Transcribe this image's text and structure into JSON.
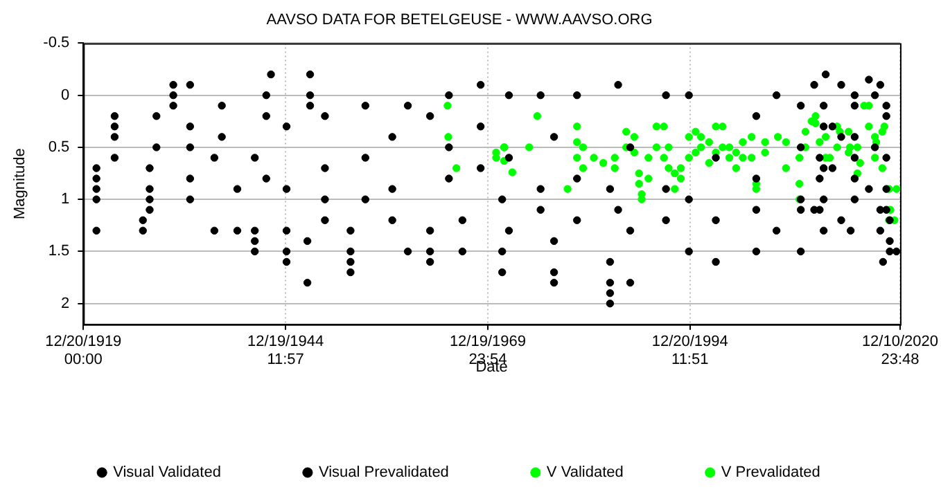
{
  "chart_data": {
    "type": "scatter",
    "title": "AAVSO DATA FOR BETELGEUSE - WWW.AAVSO.ORG",
    "xlabel": "Date",
    "ylabel": "Magnitude",
    "xlim": [
      "1919-12-20T00:00",
      "2020-12-10T23:48"
    ],
    "xticks": [
      {
        "value": "1919-12-20T00:00",
        "label": "12/20/1919 00:00"
      },
      {
        "value": "1944-12-19T11:57",
        "label": "12/19/1944 11:57"
      },
      {
        "value": "1969-12-19T23:54",
        "label": "12/19/1969 23:54"
      },
      {
        "value": "1994-12-20T11:51",
        "label": "12/20/1994 11:51"
      },
      {
        "value": "2020-12-10T23:48",
        "label": "12/10/2020 23:48"
      }
    ],
    "ylim": [
      2.2,
      -0.5
    ],
    "yticks": [
      -0.5,
      0,
      0.5,
      1,
      1.5,
      2
    ],
    "grid": true,
    "legend": "bottom",
    "marker": "circle",
    "series": [
      {
        "name": "Visual Validated",
        "color": "#000000",
        "x": [
          "1921-08",
          "1921-08",
          "1921-08",
          "1921-08",
          "1921-08",
          "1923-11",
          "1923-11",
          "1923-11",
          "1923-11",
          "1927-05",
          "1927-05",
          "1928-03",
          "1928-03",
          "1928-03",
          "1928-03",
          "1929-01",
          "1929-01",
          "1931-02",
          "1931-02",
          "1931-02",
          "1933-03",
          "1933-03",
          "1933-03",
          "1933-03",
          "1933-03",
          "1936-03",
          "1936-03",
          "1937-02",
          "1937-02",
          "1939-01",
          "1939-01",
          "1941-03",
          "1941-03",
          "1941-03",
          "1941-03",
          "1942-08",
          "1942-08",
          "1942-08",
          "1943-03",
          "1945-02",
          "1945-02",
          "1945-02",
          "1945-02",
          "1945-02",
          "1947-09",
          "1947-09",
          "1948-01",
          "1948-01",
          "1948-01",
          "1949-11",
          "1949-11",
          "1949-11",
          "1949-11",
          "1953-01",
          "1953-01",
          "1953-01",
          "1953-01",
          "1954-11",
          "1954-11",
          "1954-11",
          "1958-03",
          "1958-03",
          "1958-03",
          "1960-02",
          "1960-02",
          "1962-11",
          "1962-11",
          "1962-11",
          "1962-11",
          "1965-03",
          "1965-03",
          "1965-03",
          "1966-11",
          "1966-11",
          "1969-02",
          "1969-02",
          "1969-02",
          "1971-10",
          "1971-10",
          "1971-10",
          "1972-08",
          "1972-08",
          "1972-08",
          "1976-07",
          "1976-07",
          "1976-07",
          "1978-03",
          "1978-03",
          "1978-03",
          "1978-03",
          "1981-01",
          "1981-01",
          "1981-01",
          "1985-02",
          "1985-02",
          "1985-02",
          "1985-02",
          "1985-02",
          "1986-02",
          "1986-02",
          "1987-08",
          "1987-08",
          "1987-08",
          "1992-01",
          "1992-01",
          "1992-01",
          "1994-11",
          "1994-11",
          "1994-11",
          "1998-03",
          "1998-03",
          "1998-03",
          "2003-03",
          "2003-03",
          "2003-03",
          "2003-03",
          "2005-09",
          "2005-09",
          "2008-09",
          "2008-09",
          "2008-09",
          "2008-09",
          "2008-09",
          "2011-07",
          "2011-07",
          "2011-07",
          "2011-07",
          "2011-07",
          "2015-05",
          "2015-05",
          "2015-05",
          "2015-05",
          "2019-04",
          "2019-04",
          "2019-04",
          "2019-04",
          "2019-04"
        ],
        "values": [
          0.7,
          0.8,
          0.9,
          1.0,
          1.3,
          0.2,
          0.3,
          0.4,
          0.6,
          1.2,
          1.3,
          0.7,
          0.9,
          1.0,
          1.1,
          0.2,
          0.5,
          -0.1,
          0,
          0.1,
          -0.1,
          0.3,
          0.5,
          0.8,
          1.0,
          1.3,
          0.6,
          0.1,
          0.4,
          1.3,
          0.9,
          1.3,
          1.4,
          1.5,
          0.6,
          0,
          0.2,
          0.8,
          -0.2,
          1.3,
          1.5,
          1.6,
          0.3,
          0.9,
          1.8,
          1.4,
          -0.2,
          0,
          0.1,
          0.2,
          0.7,
          1.0,
          1.2,
          1.7,
          1.6,
          1.5,
          1.3,
          0.1,
          0.6,
          1.0,
          0.4,
          0.9,
          1.2,
          1.5,
          0.1,
          1.6,
          1.5,
          1.3,
          0.2,
          0,
          0.5,
          0.8,
          1.5,
          1.2,
          -0.1,
          0.3,
          0.7,
          1.7,
          1.5,
          1.0,
          0,
          1.3,
          0.6,
          0,
          0.9,
          1.1,
          1.8,
          1.7,
          1.4,
          0.4,
          0,
          0.8,
          1.2,
          2.0,
          1.9,
          1.8,
          1.6,
          0.9,
          -0.1,
          1.1,
          1.8,
          1.3,
          0.5,
          0,
          0.9,
          1.2,
          0,
          1.0,
          1.5,
          1.6,
          0.6,
          1.2,
          1.5,
          0.2,
          1.1,
          0.8,
          0,
          1.3,
          1.5,
          1.1,
          0.1,
          0.5,
          1.0,
          0.1,
          0.3,
          0.7,
          1.0,
          1.3,
          0.1,
          0.4,
          0.8,
          1.0,
          0.1,
          0.2,
          0.6,
          0.9,
          1.1
        ]
      },
      {
        "name": "Visual Prevalidated",
        "color": "#000000",
        "x": [
          "2010-05",
          "2010-05",
          "2011-01",
          "2011-01",
          "2011-01",
          "2011-10",
          "2012-08",
          "2012-08",
          "2013-09",
          "2013-09",
          "2013-09",
          "2014-11",
          "2015-05",
          "2015-05",
          "2017-02",
          "2017-02",
          "2017-11",
          "2017-11",
          "2018-07",
          "2018-07",
          "2018-07",
          "2018-11",
          "2019-09",
          "2019-09",
          "2019-09",
          "2020-07"
        ],
        "values": [
          -0.1,
          1.1,
          0.6,
          0.8,
          1.1,
          -0.2,
          0.3,
          0.7,
          -0.1,
          1.2,
          0.4,
          1.3,
          0,
          0.6,
          -0.15,
          0.9,
          0.5,
          0,
          -0.1,
          1.1,
          1.3,
          1.6,
          1.2,
          1.4,
          1.5,
          1.5
        ]
      },
      {
        "name": "V Validated",
        "color": "#00ff00",
        "x": [
          "1965-01",
          "1965-02",
          "1971-01",
          "1971-01",
          "1972-01",
          "1972-01",
          "1972-01",
          "1973-01",
          "1975-02",
          "1976-02",
          "1979-11",
          "1981-01",
          "1981-01",
          "1981-01",
          "1981-10",
          "1981-10",
          "1983-02",
          "1984-04",
          "1985-09",
          "1985-09",
          "1987-02",
          "1987-02",
          "1988-02",
          "1988-02",
          "1988-09",
          "1988-09",
          "1989-01",
          "1989-01",
          "1989-11",
          "1989-11",
          "1990-11",
          "1990-11",
          "1991-10",
          "1991-10",
          "1992-05",
          "1992-05",
          "1993-02",
          "1993-02",
          "1993-11",
          "1993-11",
          "1994-11",
          "1994-11",
          "1995-09",
          "1995-09",
          "1996-05",
          "1996-05",
          "1997-05",
          "1997-05",
          "1998-03",
          "1998-03",
          "1999-01",
          "1999-01",
          "1999-11",
          "1999-11",
          "2000-09",
          "2000-09",
          "2001-07",
          "2001-07",
          "2002-08",
          "2002-08",
          "2003-03",
          "2003-03",
          "2004-04",
          "2004-04",
          "2005-11",
          "2006-11",
          "2006-11",
          "2008-07",
          "2008-07",
          "2008-07",
          "2009-04",
          "2009-04",
          "2010-07",
          "2010-07",
          "2011-10",
          "2011-10",
          "2013-03",
          "2013-03",
          "2014-08",
          "2014-08",
          "2015-09",
          "2015-09",
          "2017-02",
          "2017-02",
          "2017-11",
          "2017-11",
          "2018-10",
          "2018-10",
          "2019-08",
          "2019-08"
        ],
        "values": [
          0.1,
          0.4,
          0.6,
          0.55,
          0.5,
          0.63,
          0.5,
          0.74,
          0.5,
          0.2,
          0.9,
          0.3,
          0.45,
          0.6,
          0.5,
          0.7,
          0.6,
          0.65,
          0.6,
          0.7,
          0.35,
          0.5,
          0.4,
          0.55,
          0.75,
          0.85,
          0.95,
          1.0,
          0.6,
          0.8,
          0.3,
          0.5,
          0.3,
          0.6,
          0.5,
          0.7,
          0.9,
          0.75,
          0.7,
          0.8,
          0.4,
          0.6,
          0.35,
          0.55,
          0.5,
          0.4,
          0.45,
          0.65,
          0.3,
          0.55,
          0.3,
          0.5,
          0.5,
          0.6,
          0.7,
          0.55,
          0.45,
          0.6,
          0.4,
          0.6,
          0.85,
          0.9,
          0.45,
          0.55,
          0.4,
          0.45,
          0.7,
          0.6,
          0.85,
          1.0,
          0.5,
          0.35,
          0.2,
          0.27,
          0.4,
          0.6,
          0.3,
          0.5,
          0.35,
          0.55,
          0.5,
          0.75,
          0.1,
          0.3,
          0.4,
          0.6,
          0.35,
          0.7,
          0.9,
          1.2
        ]
      },
      {
        "name": "V Prevalidated",
        "color": "#00ff00",
        "x": [
          "1966-02",
          "2010-01",
          "2011-01",
          "2012-04",
          "2013-07",
          "2014-10",
          "2016-01",
          "2016-07",
          "2018-01",
          "2019-01",
          "2019-10",
          "2020-04",
          "2020-07"
        ],
        "values": [
          0.7,
          0.25,
          0.45,
          0.6,
          0.35,
          0.5,
          0.65,
          0.1,
          0.45,
          0.3,
          1.1,
          1.2,
          0.9
        ]
      }
    ]
  }
}
